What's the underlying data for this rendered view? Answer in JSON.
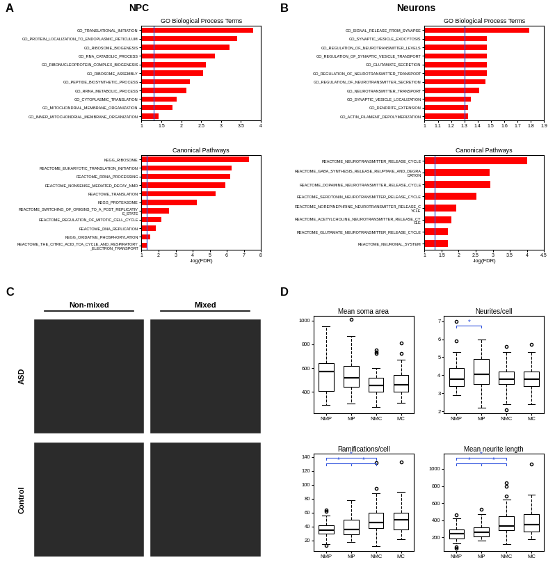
{
  "panels": [
    {
      "label": "A",
      "heading": "NPC"
    },
    {
      "label": "B",
      "heading": "Neurons"
    },
    {
      "label": "C"
    },
    {
      "label": "D"
    }
  ],
  "chart_data": [
    {
      "type": "bar",
      "orientation": "horizontal",
      "title": "GO Biological Process Terms",
      "categories": [
        "GO_TRANSLATIONAL_INITIATION",
        "GO_PROTEIN_LOCALIZATION_TO_ENDOPLASMIC_RETICULUM",
        "GO_RIBOSOME_BIOGENESIS",
        "GO_RNA_CATABOLIC_PROCESS",
        "GO_RIBONUCLEOPROTEIN_COMPLEX_BIOGENESIS",
        "GO_RIBOSOME_ASSEMBLY",
        "GO_PEPTIDE_BIOSYNTHETIC_PROCESS",
        "GO_RRNA_METABOLIC_PROCESS",
        "GO_CYTOPLASMIC_TRANSLATION",
        "GO_MITOCHONDRIAL_MEMBRANE_ORGANIZATION",
        "GO_INNER_MITOCHONDRIAL_MEMBRANE_ORGANIZATION"
      ],
      "values": [
        3.8,
        3.4,
        3.22,
        2.85,
        2.62,
        2.55,
        2.22,
        2.13,
        1.88,
        1.78,
        1.42
      ],
      "color": "#ff0000",
      "xlim": [
        1,
        4
      ],
      "xticks": [
        1,
        1.5,
        2,
        2.5,
        3,
        3.5,
        4
      ],
      "threshold": 1.3
    },
    {
      "type": "bar",
      "orientation": "horizontal",
      "title": "Canonical Pathways",
      "x_label": "-log(FDR)",
      "categories": [
        "KEGG_RIBOSOME",
        "REACTOME_EUKARYOTIC_TRANSLATION_INITIATION",
        "REACTOME_RRNA_PROCESSING",
        "REACTOME_NONSENSE_MEDIATED_DECAY_NMD",
        "REACTOME_TRANSLATION",
        "KEGG_PROTEASOME",
        "REACTOME_SWITCHING_OF_ORIGINS_TO_A_POST_REPLICATIVE_STATE",
        "REACTOME_REGULATION_OF_MITOTIC_CELL_CYCLE",
        "REACTOME_DNA_REPLICATION",
        "KEGG_OXIDATIVE_PHOSPHORYLATION",
        "REACTOME_THE_CITRIC_ACID_TCA_CYCLE_AND_RESPIRATORY_ELECTRON_TRANSPORT"
      ],
      "values": [
        7.3,
        6.3,
        6.2,
        5.9,
        5.35,
        4.25,
        2.6,
        2.15,
        1.85,
        1.5,
        1.3
      ],
      "color": "#ff0000",
      "xlim": [
        1,
        8
      ],
      "xticks": [
        1,
        2,
        3,
        4,
        5,
        6,
        7,
        8
      ],
      "threshold": 1.3
    },
    {
      "type": "bar",
      "orientation": "horizontal",
      "title": "GO Biological Process Terms",
      "categories": [
        "GO_SIGNAL_RELEASE_FROM_SYNAPSE",
        "GO_SYNAPTIC_VESICLE_EXOCYTOSIS",
        "GO_REGULATION_OF_NEUROTRANSMITTER_LEVELS",
        "GO_REGULATION_OF_SYNAPTIC_VESICLE_TRANSPORT",
        "GO_GLUTAMATE_SECRETION",
        "GO_REGULATION_OF_NEUROTRANSMITTER_TRANSPORT",
        "GO_REGULATION_OF_NEUROTRANSMITTER_SECRETION",
        "GO_NEUROTRANSMITTER_TRANSPORT",
        "GO_SYNAPTIC_VESICLE_LOCALIZATION",
        "GO_DENDRITE_EXTENSION",
        "GO_ACTIN_FILAMENT_DEPOLYMERIZATION"
      ],
      "values": [
        1.79,
        1.47,
        1.47,
        1.47,
        1.47,
        1.47,
        1.46,
        1.41,
        1.35,
        1.33,
        1.33
      ],
      "color": "#ff0000",
      "xlim": [
        1,
        1.9
      ],
      "xticks": [
        1,
        1.1,
        1.2,
        1.3,
        1.4,
        1.5,
        1.6,
        1.7,
        1.8,
        1.9
      ],
      "threshold": 1.3
    },
    {
      "type": "bar",
      "orientation": "horizontal",
      "title": "Canonical Pathways",
      "x_label": "-log(FDR)",
      "categories": [
        "REACTOME_NEUROTRANSMITTER_RELEASE_CYCLE",
        "REACTOME_GABA_SYNTHESIS_RELEASE_REUPTAKE_AND_DEGRADATION",
        "REACTOME_DOPAMINE_NEUROTRANSMITTER_RELEASE_CYCLE",
        "REACTOME_SEROTONIN_NEUROTRANSMITTER_RELEASE_CYCLE",
        "REACTOME_NOREPINEPHRINE_NEUROTRANSMITTER_RELEASE_CYCLE",
        "REACTOME_ACETYLCHOLINE_NEUROTRANSMITTER_RELEASE_CYCLE",
        "REACTOME_GLUTAMATE_NEUROTRANSMITTER_RELEASE_CYCLE",
        "REACTOME_NEURONAL_SYSTEM"
      ],
      "values": [
        4.0,
        2.9,
        2.92,
        2.52,
        1.92,
        1.78,
        1.68,
        1.68
      ],
      "color": "#ff0000",
      "xlim": [
        1,
        4.5
      ],
      "xticks": [
        1,
        1.5,
        2,
        2.5,
        3,
        3.5,
        4,
        4.5
      ],
      "threshold": 1.3
    },
    {
      "type": "image_grid",
      "columns": [
        "Non-mixed",
        "Mixed"
      ],
      "rows": [
        "ASD",
        "Control"
      ]
    },
    {
      "type": "box",
      "title": "Mean soma area",
      "categories": [
        "NMP",
        "MP",
        "NMC",
        "MC"
      ],
      "boxes": [
        {
          "whislo": 290,
          "q1": 410,
          "med": 570,
          "q3": 640,
          "whishi": 950,
          "fliers": []
        },
        {
          "whislo": 300,
          "q1": 440,
          "med": 520,
          "q3": 620,
          "whishi": 870,
          "fliers": [
            1010
          ]
        },
        {
          "whislo": 270,
          "q1": 400,
          "med": 455,
          "q3": 520,
          "whishi": 600,
          "fliers": [
            720,
            735,
            750
          ]
        },
        {
          "whislo": 310,
          "q1": 400,
          "med": 460,
          "q3": 540,
          "whishi": 670,
          "fliers": [
            720,
            810
          ]
        }
      ],
      "ylim": [
        220,
        1040
      ],
      "yticks": [
        400,
        600,
        800,
        1000
      ],
      "significance": []
    },
    {
      "type": "box",
      "title": "Neurites/cell",
      "categories": [
        "NMP",
        "MP",
        "NMC",
        "MC"
      ],
      "boxes": [
        {
          "whislo": 2.9,
          "q1": 3.4,
          "med": 3.8,
          "q3": 4.4,
          "whishi": 5.3,
          "fliers": [
            5.9,
            7.0
          ]
        },
        {
          "whislo": 2.2,
          "q1": 3.5,
          "med": 4.05,
          "q3": 4.9,
          "whishi": 6.0,
          "fliers": []
        },
        {
          "whislo": 2.4,
          "q1": 3.5,
          "med": 3.8,
          "q3": 4.2,
          "whishi": 5.3,
          "fliers": [
            2.1,
            5.6
          ]
        },
        {
          "whislo": 2.4,
          "q1": 3.4,
          "med": 3.8,
          "q3": 4.2,
          "whishi": 5.3,
          "fliers": [
            5.7
          ]
        }
      ],
      "ylim": [
        1.9,
        7.3
      ],
      "yticks": [
        2,
        3,
        4,
        5,
        6,
        7
      ],
      "significance": [
        {
          "pair": [
            "NMP",
            "MP"
          ],
          "label": "*"
        }
      ]
    },
    {
      "type": "box",
      "title": "Ramifications/cell",
      "categories": [
        "NMP",
        "MP",
        "NMC",
        "MC"
      ],
      "boxes": [
        {
          "whislo": 15,
          "q1": 30,
          "med": 35,
          "q3": 42,
          "whishi": 56,
          "fliers": [
            13,
            62,
            64
          ]
        },
        {
          "whislo": 18,
          "q1": 29,
          "med": 36,
          "q3": 50,
          "whishi": 78,
          "fliers": []
        },
        {
          "whislo": 12,
          "q1": 38,
          "med": 46,
          "q3": 60,
          "whishi": 88,
          "fliers": [
            95,
            132
          ]
        },
        {
          "whislo": 22,
          "q1": 36,
          "med": 50,
          "q3": 60,
          "whishi": 90,
          "fliers": [
            133
          ]
        }
      ],
      "ylim": [
        5,
        145
      ],
      "yticks": [
        20,
        40,
        60,
        80,
        100,
        120,
        140
      ],
      "significance": [
        {
          "pair": [
            "NMP",
            "NMC"
          ],
          "label": "*"
        },
        {
          "pair": [
            "NMP",
            "MP"
          ],
          "label": "*"
        },
        {
          "pair": [
            "MP",
            "NMC"
          ],
          "label": "*"
        }
      ]
    },
    {
      "type": "box",
      "title": "Mean neurite length",
      "categories": [
        "NMP",
        "MP",
        "NMC",
        "MC"
      ],
      "boxes": [
        {
          "whislo": 130,
          "q1": 190,
          "med": 240,
          "q3": 290,
          "whishi": 420,
          "fliers": [
            70,
            90,
            460
          ]
        },
        {
          "whislo": 160,
          "q1": 210,
          "med": 260,
          "q3": 320,
          "whishi": 470,
          "fliers": [
            530
          ]
        },
        {
          "whislo": 120,
          "q1": 280,
          "med": 330,
          "q3": 450,
          "whishi": 640,
          "fliers": [
            680,
            800,
            840
          ]
        },
        {
          "whislo": 180,
          "q1": 270,
          "med": 350,
          "q3": 470,
          "whishi": 700,
          "fliers": [
            1060
          ]
        }
      ],
      "ylim": [
        40,
        1180
      ],
      "yticks": [
        200,
        400,
        600,
        800,
        1000
      ],
      "significance": [
        {
          "pair": [
            "NMP",
            "NMC"
          ],
          "label": "*"
        },
        {
          "pair": [
            "NMP",
            "MP"
          ],
          "label": "*"
        },
        {
          "pair": [
            "MP",
            "NMC"
          ],
          "label": "*"
        }
      ]
    }
  ]
}
